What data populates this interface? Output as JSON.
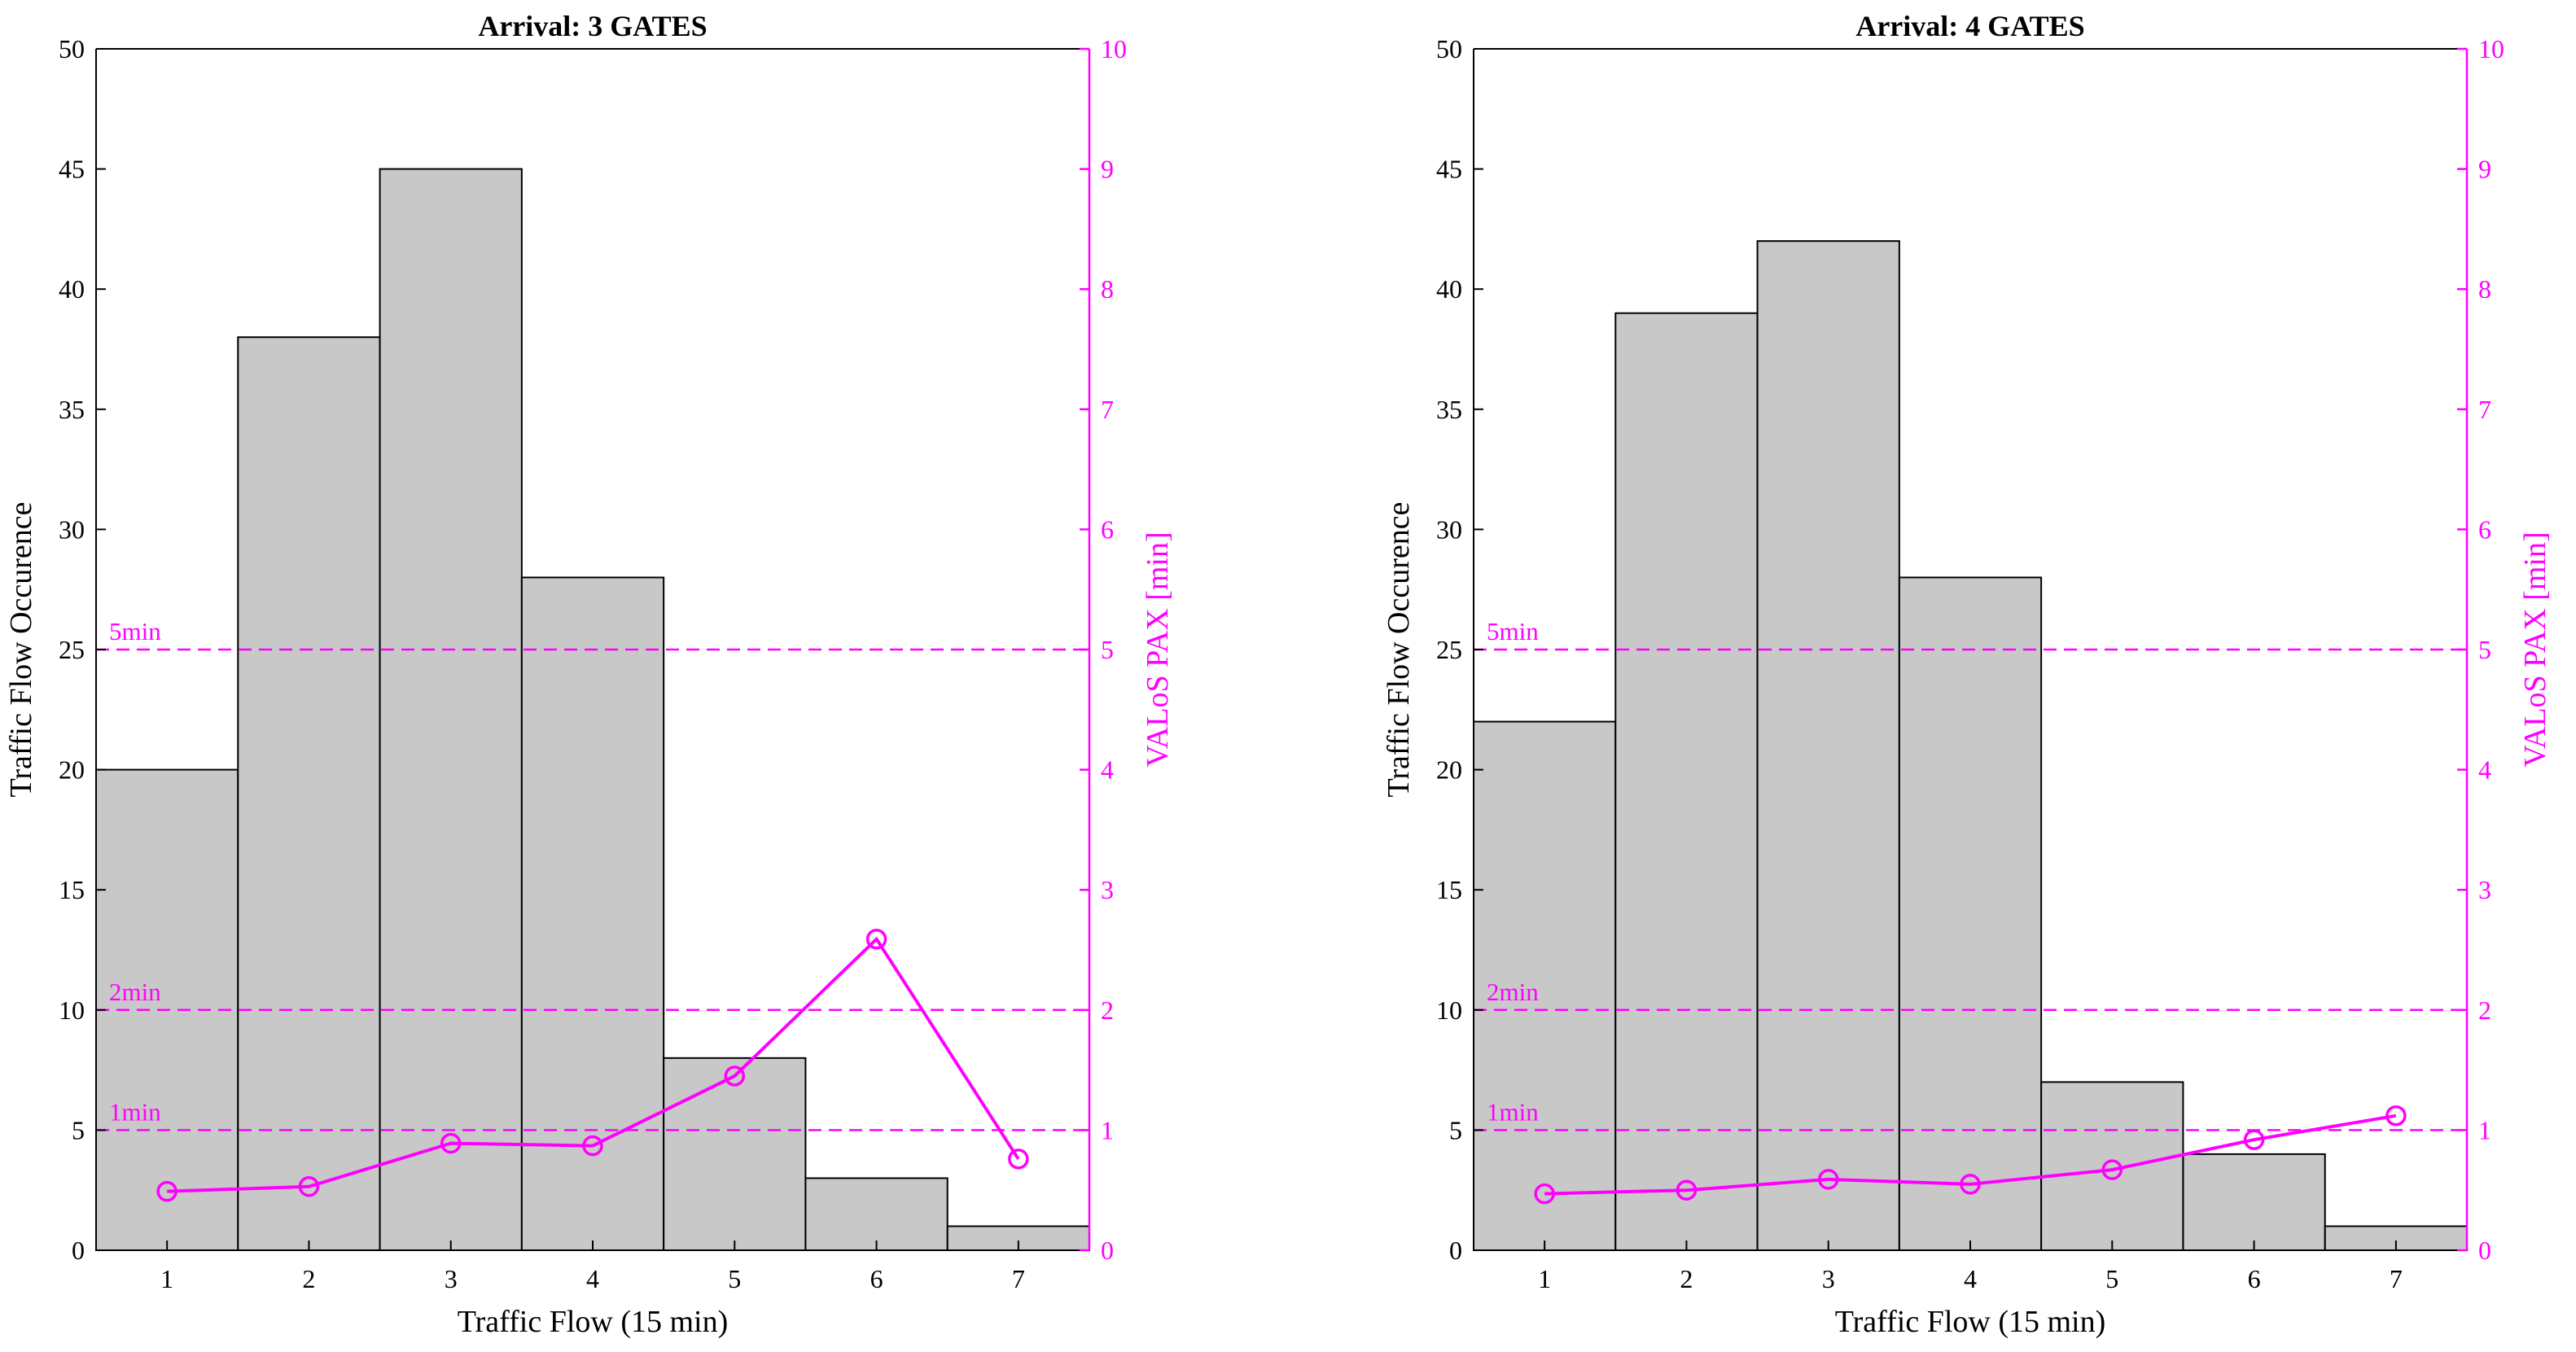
{
  "colors": {
    "bar_fill": "#c8c8c8",
    "bar_stroke": "#000000",
    "axis": "#000000",
    "accent": "#ff00ff",
    "background": "#ffffff"
  },
  "chart_data": [
    {
      "type": "bar",
      "title": "Arrival: 3 GATES",
      "xlabel": "Traffic Flow (15 min)",
      "ylabel": "Traffic Flow Occurence",
      "y2label": "VALoS PAX [min]",
      "categories": [
        "1",
        "2",
        "3",
        "4",
        "5",
        "6",
        "7"
      ],
      "values": [
        20,
        38,
        45,
        28,
        8,
        3,
        1
      ],
      "ylim": [
        0,
        50
      ],
      "yticks": [
        "0",
        "5",
        "10",
        "15",
        "20",
        "25",
        "30",
        "35",
        "40",
        "45",
        "50"
      ],
      "y2lim": [
        0,
        10
      ],
      "y2ticks": [
        "0",
        "1",
        "2",
        "3",
        "4",
        "5",
        "6",
        "7",
        "8",
        "9",
        "10"
      ],
      "line_series": {
        "name": "VALoS PAX",
        "axis": "right",
        "values": [
          0.49,
          0.53,
          0.89,
          0.87,
          1.45,
          2.59,
          0.76
        ]
      },
      "reference_lines": [
        {
          "label": "1min",
          "value": 1
        },
        {
          "label": "2min",
          "value": 2
        },
        {
          "label": "5min",
          "value": 5
        }
      ]
    },
    {
      "type": "bar",
      "title": "Arrival: 4 GATES",
      "xlabel": "Traffic Flow (15 min)",
      "ylabel": "Traffic Flow Occurence",
      "y2label": "VALoS PAX [min]",
      "categories": [
        "1",
        "2",
        "3",
        "4",
        "5",
        "6",
        "7"
      ],
      "values": [
        22,
        39,
        42,
        28,
        7,
        4,
        1
      ],
      "ylim": [
        0,
        50
      ],
      "yticks": [
        "0",
        "5",
        "10",
        "15",
        "20",
        "25",
        "30",
        "35",
        "40",
        "45",
        "50"
      ],
      "y2lim": [
        0,
        10
      ],
      "y2ticks": [
        "0",
        "1",
        "2",
        "3",
        "4",
        "5",
        "6",
        "7",
        "8",
        "9",
        "10"
      ],
      "line_series": {
        "name": "VALoS PAX",
        "axis": "right",
        "values": [
          0.47,
          0.5,
          0.59,
          0.55,
          0.67,
          0.92,
          1.12
        ]
      },
      "reference_lines": [
        {
          "label": "1min",
          "value": 1
        },
        {
          "label": "2min",
          "value": 2
        },
        {
          "label": "5min",
          "value": 5
        }
      ]
    }
  ]
}
